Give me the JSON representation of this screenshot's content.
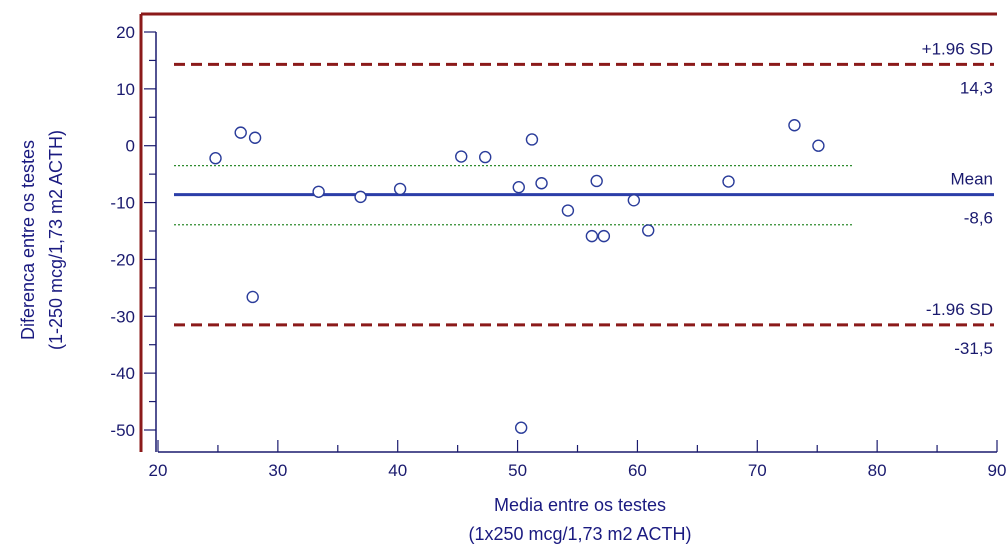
{
  "chart_data": {
    "type": "scatter",
    "xlabel": [
      "Media entre os testes",
      "(1x250 mcg/1,73 m2 ACTH)"
    ],
    "ylabel": [
      "Diferenca entre os testes",
      "(1-250 mcg/1,73 m2 ACTH)"
    ],
    "xlim": [
      20,
      90
    ],
    "ylim": [
      -53,
      23
    ],
    "x_ticks": [
      20,
      30,
      40,
      50,
      60,
      70,
      80,
      90
    ],
    "y_ticks": [
      20,
      10,
      0,
      -10,
      -20,
      -30,
      -40,
      -50
    ],
    "x_tick_labels": [
      "20",
      "30",
      "40",
      "50",
      "60",
      "70",
      "80",
      "90"
    ],
    "y_tick_labels": [
      "20",
      "10",
      "0",
      "-10",
      "-20",
      "-30",
      "-40",
      "-50"
    ],
    "points": [
      {
        "x": 24.8,
        "y": -2.2
      },
      {
        "x": 26.9,
        "y": 2.3
      },
      {
        "x": 28.1,
        "y": 1.4
      },
      {
        "x": 27.9,
        "y": -26.6
      },
      {
        "x": 33.4,
        "y": -8.1
      },
      {
        "x": 36.9,
        "y": -9.0
      },
      {
        "x": 40.2,
        "y": -7.6
      },
      {
        "x": 45.3,
        "y": -1.9
      },
      {
        "x": 47.3,
        "y": -2.0
      },
      {
        "x": 50.1,
        "y": -7.3
      },
      {
        "x": 51.2,
        "y": 1.1
      },
      {
        "x": 52.0,
        "y": -6.6
      },
      {
        "x": 54.2,
        "y": -11.4
      },
      {
        "x": 56.2,
        "y": -15.9
      },
      {
        "x": 56.6,
        "y": -6.2
      },
      {
        "x": 57.2,
        "y": -15.9
      },
      {
        "x": 59.7,
        "y": -9.6
      },
      {
        "x": 60.9,
        "y": -14.9
      },
      {
        "x": 67.6,
        "y": -6.3
      },
      {
        "x": 73.1,
        "y": 3.6
      },
      {
        "x": 75.1,
        "y": 0.0
      },
      {
        "x": 50.3,
        "y": -49.6
      }
    ],
    "reference_lines": {
      "upper": {
        "label": "+1.96 SD",
        "value_label": "14,3",
        "y": 14.3,
        "color": "#8b1a1a",
        "style": "dashed"
      },
      "mean": {
        "label": "Mean",
        "value_label": "-8,6",
        "y": -8.6,
        "color": "#2b3ea8",
        "style": "solid"
      },
      "lower": {
        "label": "-1.96 SD",
        "value_label": "-31,5",
        "y": -31.5,
        "color": "#8b1a1a",
        "style": "dashed"
      }
    },
    "ci_lines": {
      "y": [
        -3.5,
        -13.9
      ],
      "x_range": [
        20,
        78
      ],
      "color": "#2e8b2e",
      "style": "dotted"
    },
    "colors": {
      "frame": "#8b1a1a",
      "axis": "#1a1a6e",
      "marker": "#2a3c9a"
    },
    "grid": false,
    "legend": "none"
  }
}
